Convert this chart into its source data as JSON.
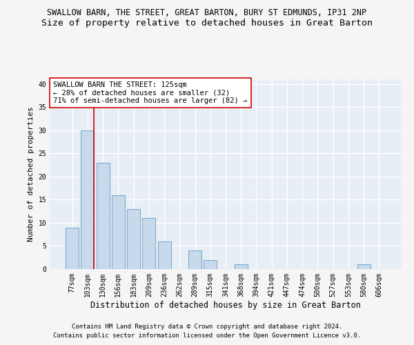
{
  "title": "SWALLOW BARN, THE STREET, GREAT BARTON, BURY ST EDMUNDS, IP31 2NP",
  "subtitle": "Size of property relative to detached houses in Great Barton",
  "xlabel": "Distribution of detached houses by size in Great Barton",
  "ylabel": "Number of detached properties",
  "bins": [
    "77sqm",
    "103sqm",
    "130sqm",
    "156sqm",
    "183sqm",
    "209sqm",
    "236sqm",
    "262sqm",
    "289sqm",
    "315sqm",
    "341sqm",
    "368sqm",
    "394sqm",
    "421sqm",
    "447sqm",
    "474sqm",
    "500sqm",
    "527sqm",
    "553sqm",
    "580sqm",
    "606sqm"
  ],
  "values": [
    9,
    30,
    23,
    16,
    13,
    11,
    6,
    0,
    4,
    2,
    0,
    1,
    0,
    0,
    0,
    0,
    0,
    0,
    0,
    1,
    0
  ],
  "bar_color": "#c9d9ec",
  "bar_edge_color": "#7aaace",
  "vline_color": "#cc0000",
  "annotation_text": "SWALLOW BARN THE STREET: 125sqm\n← 28% of detached houses are smaller (32)\n71% of semi-detached houses are larger (82) →",
  "annotation_box_color": "#ffffff",
  "annotation_box_edge": "#cc0000",
  "ylim": [
    0,
    41
  ],
  "yticks": [
    0,
    5,
    10,
    15,
    20,
    25,
    30,
    35,
    40
  ],
  "footer1": "Contains HM Land Registry data © Crown copyright and database right 2024.",
  "footer2": "Contains public sector information licensed under the Open Government Licence v3.0.",
  "background_color": "#e8eef5",
  "grid_color": "#ffffff",
  "fig_bg_color": "#f5f5f5",
  "title_fontsize": 8.5,
  "subtitle_fontsize": 9.5,
  "xlabel_fontsize": 8.5,
  "ylabel_fontsize": 8,
  "tick_fontsize": 7,
  "annotation_fontsize": 7.5,
  "footer_fontsize": 6.5
}
